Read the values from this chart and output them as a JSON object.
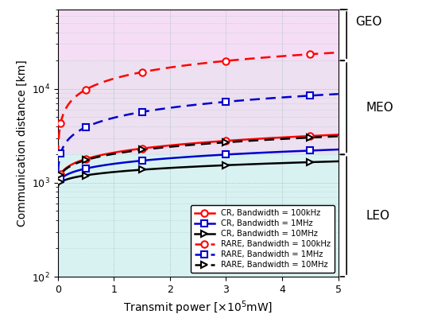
{
  "x_max": 500000,
  "x_ticks": [
    0,
    100000,
    200000,
    300000,
    400000,
    500000
  ],
  "x_ticklabels": [
    "0",
    "1",
    "2",
    "3",
    "4",
    "5"
  ],
  "xlabel": "Transmit power [$\\times10^5$mW]",
  "ylabel": "Communication distance [km]",
  "ylim": [
    100,
    70000
  ],
  "background_geo_color": "#f5ddf5",
  "background_meo_color": "#ede0f0",
  "background_leo_color": "#d8f2f2",
  "geo_ymin": 20000,
  "meo_ymin": 2000,
  "meo_ymax": 20000,
  "leo_ymin": 100,
  "leo_ymax": 2000,
  "cr_100k_params": {
    "d0": 900,
    "k": 9.5,
    "alpha": 0.42
  },
  "cr_1M_params": {
    "d0": 900,
    "k": 5.5,
    "alpha": 0.42
  },
  "cr_10M_params": {
    "d0": 900,
    "k": 3.2,
    "alpha": 0.42
  },
  "rare_100k_params": {
    "d0": 900,
    "k": 95,
    "alpha": 0.42
  },
  "rare_1M_params": {
    "d0": 900,
    "k": 32,
    "alpha": 0.42
  },
  "rare_10M_params": {
    "d0": 900,
    "k": 9.0,
    "alpha": 0.42
  },
  "marker_x": [
    5000,
    50000,
    100000,
    150000,
    200000,
    250000,
    300000,
    350000,
    400000,
    450000,
    500000
  ],
  "cr_mk_x": [
    5000,
    50000,
    150000,
    300000,
    450000
  ],
  "rare_mk_x": [
    5000,
    50000,
    150000,
    300000,
    450000
  ],
  "legend_labels": [
    "CR, Bandwidth = 100kHz",
    "CR, Bandwidth = 1MHz",
    "CR, Bandwidth = 10MHz",
    "RARE, Bandwidth = 100kHz",
    "RARE, Bandwidth = 1MHz",
    "RARE, Bandwidth = 10MHz"
  ],
  "red": "#ff0000",
  "blue": "#0000cc",
  "black": "#000000"
}
